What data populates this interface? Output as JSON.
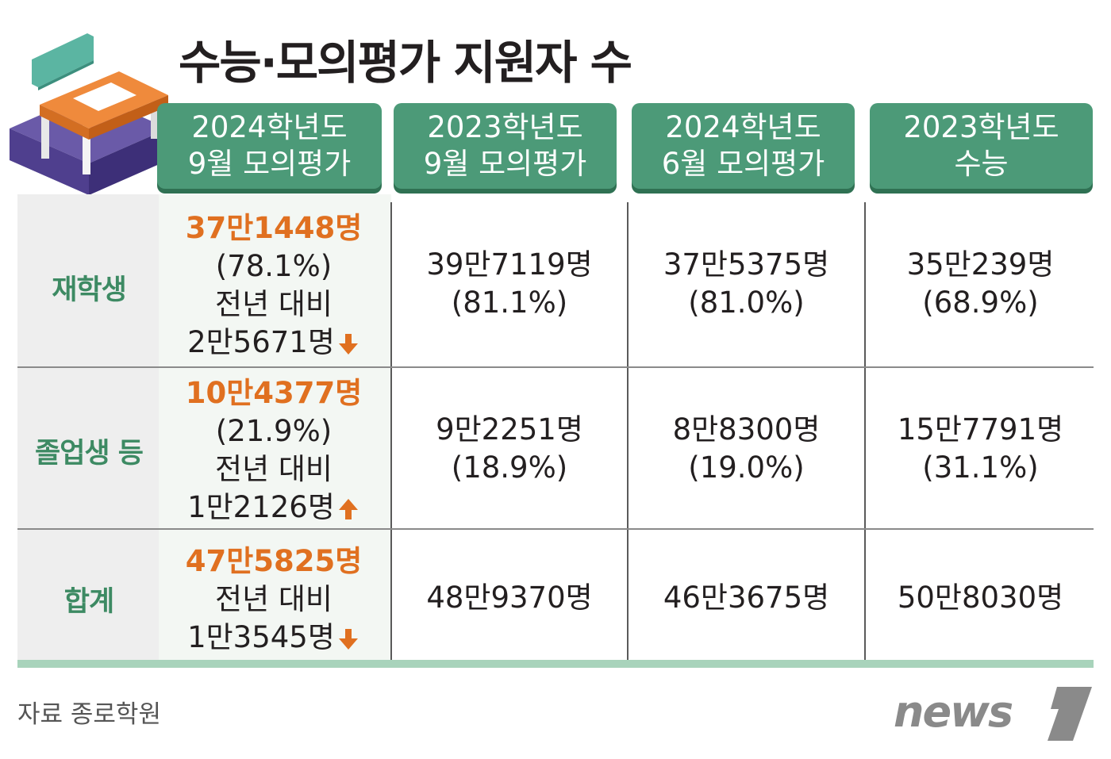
{
  "title": "수능·모의평가 지원자 수",
  "columns": [
    {
      "line1": "2024학년도",
      "line2": "9월 모의평가"
    },
    {
      "line1": "2023학년도",
      "line2": "9월 모의평가"
    },
    {
      "line1": "2024학년도",
      "line2": "6월 모의평가"
    },
    {
      "line1": "2023학년도",
      "line2": "수능"
    }
  ],
  "rows": [
    {
      "label": "재학생",
      "cells": [
        {
          "count": "37만1448명",
          "pct": "(78.1%)",
          "note": "전년 대비",
          "change": "2만5671명",
          "direction": "down"
        },
        {
          "count": "39만7119명",
          "pct": "(81.1%)"
        },
        {
          "count": "37만5375명",
          "pct": "(81.0%)"
        },
        {
          "count": "35만239명",
          "pct": "(68.9%)"
        }
      ]
    },
    {
      "label": "졸업생 등",
      "cells": [
        {
          "count": "10만4377명",
          "pct": "(21.9%)",
          "note": "전년 대비",
          "change": "1만2126명",
          "direction": "up"
        },
        {
          "count": "9만2251명",
          "pct": "(18.9%)"
        },
        {
          "count": "8만8300명",
          "pct": "(19.0%)"
        },
        {
          "count": "15만7791명",
          "pct": "(31.1%)"
        }
      ]
    },
    {
      "label": "합계",
      "cells": [
        {
          "count": "47만5825명",
          "note": "전년 대비",
          "change": "1만3545명",
          "direction": "down"
        },
        {
          "count": "48만9370명"
        },
        {
          "count": "46만3675명"
        },
        {
          "count": "50만8030명"
        }
      ]
    }
  ],
  "source": "자료 종로학원",
  "logo": "news1",
  "colors": {
    "header": "#4c9a78",
    "accent": "#e07020",
    "row_label": "#3d8a63"
  },
  "chart_data": {
    "type": "table",
    "title": "수능·모의평가 지원자 수",
    "columns": [
      "2024학년도 9월 모의평가",
      "2023학년도 9월 모의평가",
      "2024학년도 6월 모의평가",
      "2023학년도 수능"
    ],
    "rows": [
      "재학생",
      "졸업생 등",
      "합계"
    ],
    "values": [
      [
        371448,
        397119,
        375375,
        350239
      ],
      [
        104377,
        92251,
        88300,
        157791
      ],
      [
        475825,
        489370,
        463675,
        508030
      ]
    ],
    "percentages": [
      [
        78.1,
        81.1,
        81.0,
        68.9
      ],
      [
        21.9,
        18.9,
        19.0,
        31.1
      ]
    ],
    "year_over_year_change": [
      {
        "row": "재학생",
        "value": 25671,
        "direction": "down"
      },
      {
        "row": "졸업생 등",
        "value": 12126,
        "direction": "up"
      },
      {
        "row": "합계",
        "value": 13545,
        "direction": "down"
      }
    ]
  }
}
